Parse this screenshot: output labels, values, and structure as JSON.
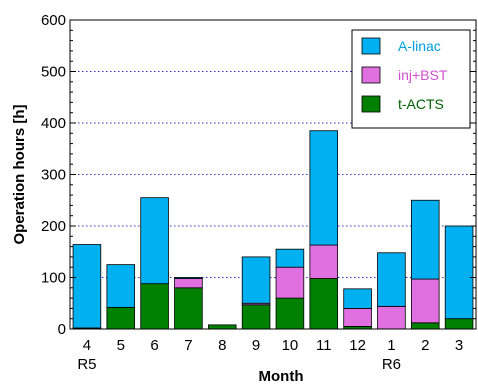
{
  "chart_data": {
    "type": "bar",
    "stacked": true,
    "xlabel": "Month",
    "ylabel": "Operation hours [h]",
    "ylim": [
      0,
      600
    ],
    "yticks": [
      0,
      100,
      200,
      300,
      400,
      500,
      600
    ],
    "grid": "horizontal dotted",
    "legend_position": "top-right",
    "categories": [
      "4",
      "5",
      "6",
      "7",
      "8",
      "9",
      "10",
      "11",
      "12",
      "1",
      "2",
      "3"
    ],
    "sub_labels": [
      "R5",
      "",
      "",
      "",
      "",
      "",
      "",
      "",
      "",
      "R6",
      "",
      ""
    ],
    "series": [
      {
        "name": "t-ACTS",
        "color": "#008000",
        "values": [
          2,
          42,
          88,
          80,
          8,
          47,
          60,
          98,
          5,
          0,
          12,
          20
        ]
      },
      {
        "name": "inj+BST",
        "color": "#e070e0",
        "values": [
          0,
          0,
          0,
          18,
          0,
          3,
          60,
          65,
          35,
          44,
          85,
          0
        ]
      },
      {
        "name": "A-linac",
        "color": "#00b0f0",
        "values": [
          162,
          83,
          167,
          2,
          0,
          90,
          35,
          222,
          38,
          104,
          153,
          180
        ]
      }
    ],
    "legend_order": [
      "A-linac",
      "inj+BST",
      "t-ACTS"
    ]
  }
}
